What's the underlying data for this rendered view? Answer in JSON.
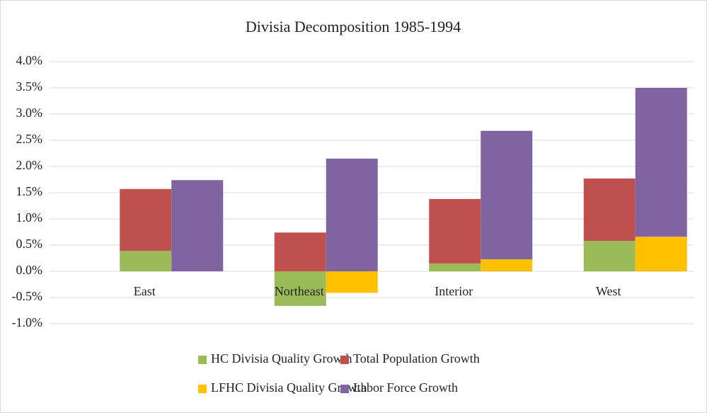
{
  "chart_data": {
    "type": "bar",
    "title": "Divisia Decomposition 1985-1994",
    "categories": [
      "East",
      "Northeast",
      "Interior",
      "West"
    ],
    "series": [
      {
        "name": "HC Divisia Quality Growth",
        "color": "#9bbb59",
        "stack": 0,
        "values": [
          0.39,
          -0.66,
          0.15,
          0.58
        ]
      },
      {
        "name": "Total Population Growth",
        "color": "#c0504d",
        "stack": 0,
        "values": [
          1.18,
          0.74,
          1.23,
          1.19
        ]
      },
      {
        "name": "LFHC Divisia Quality Growth",
        "color": "#ffc000",
        "stack": 1,
        "values": [
          0,
          -0.41,
          0.23,
          0.66
        ]
      },
      {
        "name": "Labor Force Growth",
        "color": "#8064a2",
        "stack": 1,
        "values": [
          1.74,
          2.15,
          2.45,
          2.84
        ]
      }
    ],
    "ylim": [
      -1,
      4
    ],
    "yticks": [
      {
        "value": -1,
        "label": "-1.0%"
      },
      {
        "value": -0.5,
        "label": "-0.5%"
      },
      {
        "value": 0,
        "label": "0.0%"
      },
      {
        "value": 0.5,
        "label": "0.5%"
      },
      {
        "value": 1,
        "label": "1.0%"
      },
      {
        "value": 1.5,
        "label": "1.5%"
      },
      {
        "value": 2,
        "label": "2.0%"
      },
      {
        "value": 2.5,
        "label": "2.5%"
      },
      {
        "value": 3,
        "label": "3.0%"
      },
      {
        "value": 3.5,
        "label": "3.5%"
      },
      {
        "value": 4,
        "label": "4.0%"
      }
    ],
    "grid": true
  }
}
